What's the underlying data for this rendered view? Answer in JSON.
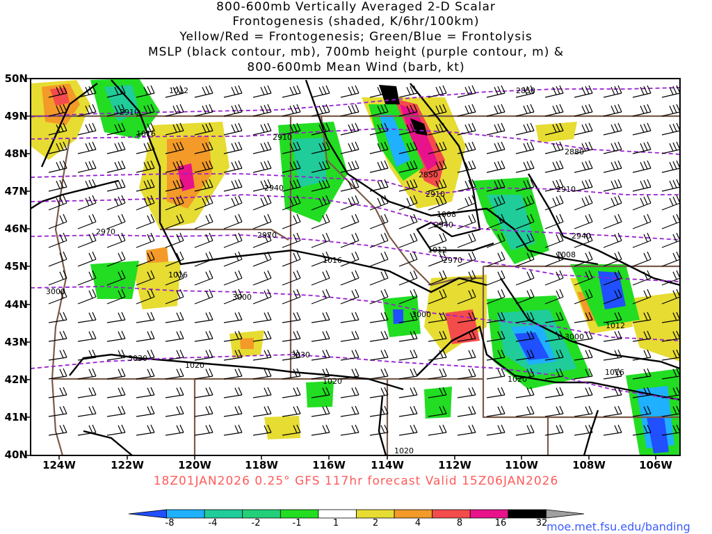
{
  "title": {
    "line1": "800-600mb Vertically Averaged 2-D Scalar",
    "line2": "Frontogenesis (shaded, K/6hr/100km)",
    "line3": "Yellow/Red = Frontogenesis;  Green/Blue = Frontolysis",
    "line4": "MSLP (black contour, mb), 700mb height (purple contour, m) &",
    "line5": "800-600mb Mean Wind (barb, kt)"
  },
  "forecast_label": "18Z01JAN2026 0.25° GFS 117hr forecast Valid 15Z06JAN2026",
  "credit": "moe.met.fsu.edu/banding",
  "axes": {
    "lat_labels": [
      "50N",
      "49N",
      "48N",
      "47N",
      "46N",
      "45N",
      "44N",
      "43N",
      "42N",
      "41N",
      "40N"
    ],
    "lon_labels": [
      "124W",
      "122W",
      "120W",
      "118W",
      "116W",
      "114W",
      "112W",
      "110W",
      "108W",
      "106W"
    ]
  },
  "colorbar": {
    "labels": [
      "-8",
      "-4",
      "-2",
      "-1",
      "1",
      "2",
      "4",
      "8",
      "16",
      "32"
    ],
    "colors": [
      "#2050ff",
      "#1fb0ff",
      "#20cc99",
      "#22d07a",
      "#22dd22",
      "#ffffff",
      "#e6dc32",
      "#f39a28",
      "#f44b4b",
      "#e8128a",
      "#000000",
      "#a0a0a0"
    ]
  },
  "contour_labels": {
    "mslp": [
      "1012",
      "1016",
      "1016",
      "1016",
      "1008",
      "1012",
      "1008",
      "1012",
      "1016",
      "1020",
      "1020",
      "1020",
      "1020"
    ],
    "height": [
      "2850",
      "2880",
      "2910",
      "2910",
      "2910",
      "2940",
      "2940",
      "2940",
      "2970",
      "2970",
      "2970",
      "3000",
      "3000",
      "3000",
      "3000",
      "3030",
      "3030",
      "2850",
      "2910"
    ]
  }
}
